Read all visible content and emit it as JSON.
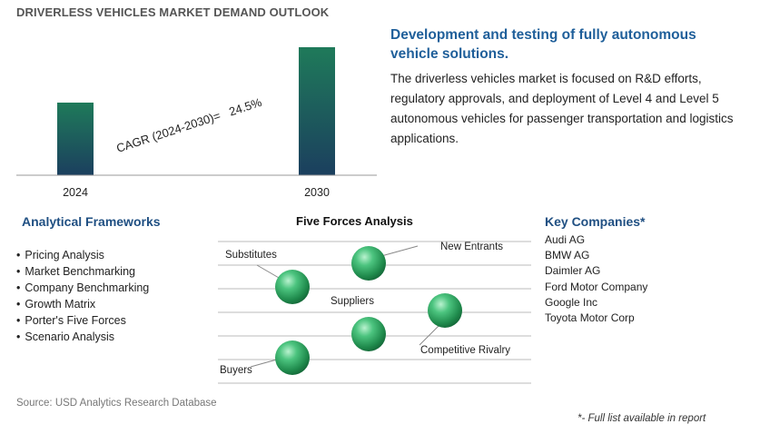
{
  "header": {
    "title": "DRIVERLESS VEHICLES MARKET DEMAND OUTLOOK"
  },
  "chart_data": {
    "type": "bar",
    "categories": [
      "2024",
      "2030"
    ],
    "annotation": "CAGR (2024-2030)=   24.5%",
    "colors": {
      "bar_top": "#1f7a5a",
      "bar_bottom": "#1b3f5e",
      "axis": "#999999"
    }
  },
  "description": {
    "headline": "Development and testing of fully autonomous vehicle solutions.",
    "body": "The driverless vehicles market is focused on R&D efforts, regulatory approvals, and deployment of Level 4 and Level 5 autonomous vehicles for passenger transportation and logistics applications."
  },
  "frameworks": {
    "title": "Analytical Frameworks",
    "items": [
      "Pricing Analysis",
      "Market Benchmarking",
      "Company Benchmarking",
      "Growth Matrix",
      "Porter's Five Forces",
      "Scenario Analysis"
    ]
  },
  "five_forces": {
    "title": "Five Forces Analysis",
    "labels": {
      "substitutes": "Substitutes",
      "new_entrants": "New Entrants",
      "suppliers": "Suppliers",
      "competitive_rivalry": "Competitive Rivalry",
      "buyers": "Buyers"
    },
    "sphere_color": "#2e9e5e"
  },
  "companies": {
    "title": "Key Companies*",
    "items": [
      "Audi AG",
      "BMW AG",
      "Daimler AG",
      "Ford Motor Company",
      "Google Inc",
      "Toyota Motor Corp"
    ]
  },
  "footer": {
    "source": "Source: USD Analytics Research Database",
    "note": "*- Full list available in report"
  }
}
